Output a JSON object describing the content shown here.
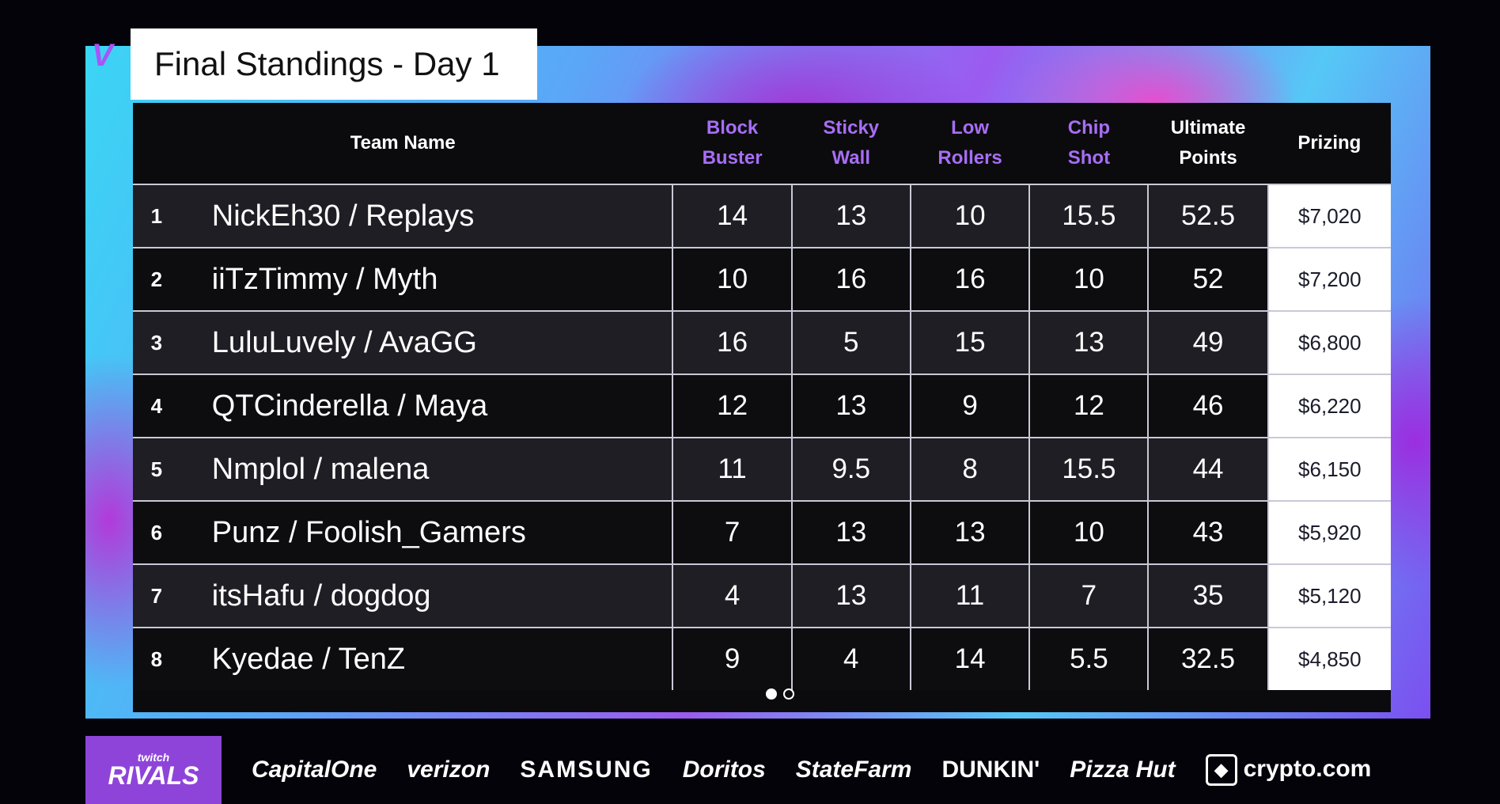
{
  "app": {
    "title": "Final Standings - Day 1"
  },
  "table": {
    "headers": {
      "team_name": "Team Name",
      "block_buster": [
        "Block",
        "Buster"
      ],
      "sticky_wall": [
        "Sticky",
        "Wall"
      ],
      "low_rollers": [
        "Low",
        "Rollers"
      ],
      "chip_shot": [
        "Chip",
        "Shot"
      ],
      "ultimate_points": [
        "Ultimate",
        "Points"
      ],
      "prizing": "Prizing"
    },
    "rows": [
      {
        "rank": "1",
        "team": "NickEh30 / Replays",
        "block_buster": "14",
        "sticky_wall": "13",
        "low_rollers": "10",
        "chip_shot": "15.5",
        "ultimate_points": "52.5",
        "prizing": "$7,020"
      },
      {
        "rank": "2",
        "team": "iiTzTimmy / Myth",
        "block_buster": "10",
        "sticky_wall": "16",
        "low_rollers": "16",
        "chip_shot": "10",
        "ultimate_points": "52",
        "prizing": "$7,200"
      },
      {
        "rank": "3",
        "team": "LuluLuvely / AvaGG",
        "block_buster": "16",
        "sticky_wall": "5",
        "low_rollers": "15",
        "chip_shot": "13",
        "ultimate_points": "49",
        "prizing": "$6,800"
      },
      {
        "rank": "4",
        "team": "QTCinderella / Maya",
        "block_buster": "12",
        "sticky_wall": "13",
        "low_rollers": "9",
        "chip_shot": "12",
        "ultimate_points": "46",
        "prizing": "$6,220"
      },
      {
        "rank": "5",
        "team": "Nmplol / malena",
        "block_buster": "11",
        "sticky_wall": "9.5",
        "low_rollers": "8",
        "chip_shot": "15.5",
        "ultimate_points": "44",
        "prizing": "$6,150"
      },
      {
        "rank": "6",
        "team": "Punz / Foolish_Gamers",
        "block_buster": "7",
        "sticky_wall": "13",
        "low_rollers": "13",
        "chip_shot": "10",
        "ultimate_points": "43",
        "prizing": "$5,920"
      },
      {
        "rank": "7",
        "team": "itsHafu / dogdog",
        "block_buster": "4",
        "sticky_wall": "13",
        "low_rollers": "11",
        "chip_shot": "7",
        "ultimate_points": "35",
        "prizing": "$5,120"
      },
      {
        "rank": "8",
        "team": "Kyedae / TenZ",
        "block_buster": "9",
        "sticky_wall": "4",
        "low_rollers": "14",
        "chip_shot": "5.5",
        "ultimate_points": "32.5",
        "prizing": "$4,850"
      }
    ]
  },
  "pagination": {
    "active_page": 1,
    "total_pages": 2
  },
  "sponsors": {
    "rivals_top": "twitch",
    "rivals_bottom": "RIVALS",
    "items": [
      "CapitalOne",
      "verizon",
      "SAMSUNG",
      "Doritos",
      "StateFarm",
      "DUNKIN'",
      "Pizza Hut",
      "crypto.com"
    ]
  },
  "colors": {
    "accent_purple": "#a86ef5",
    "board_bg": "#0b0b0e",
    "prize_bg": "#ffffff"
  }
}
